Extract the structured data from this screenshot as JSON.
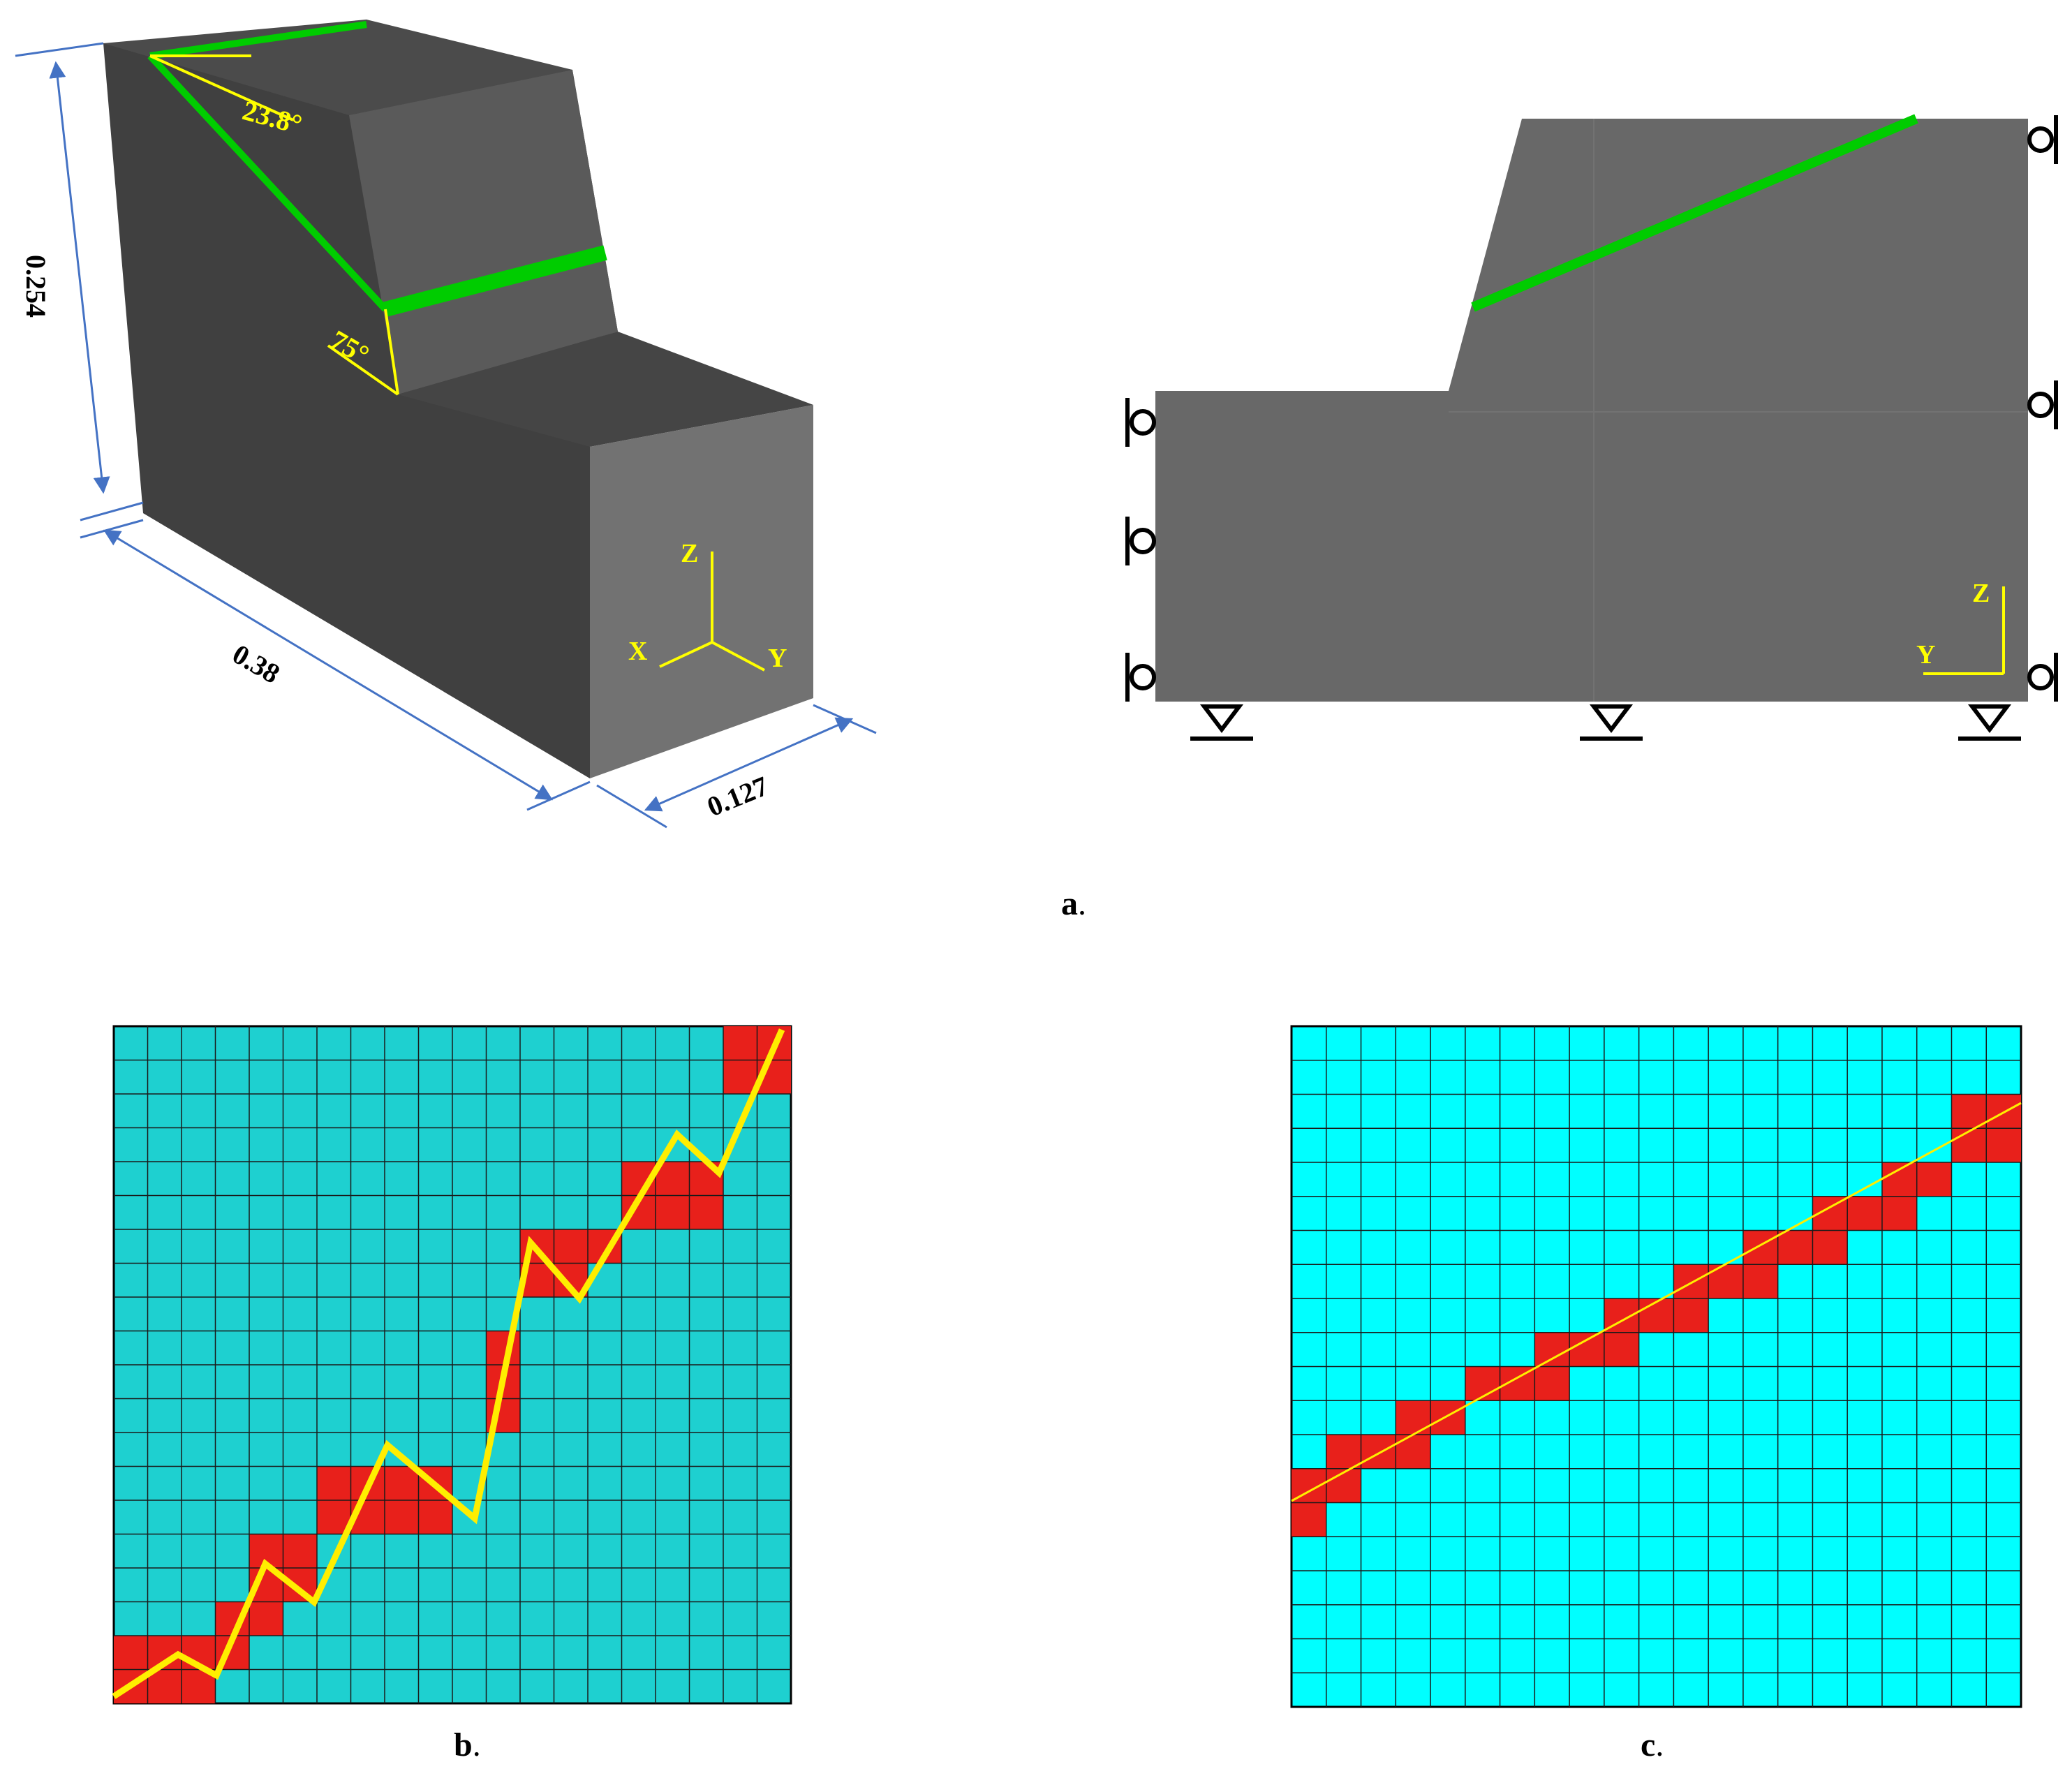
{
  "figure": {
    "panel_a": {
      "label": "a",
      "dimensions": {
        "height": "0.254",
        "length": "0.38",
        "width": "0.127"
      },
      "angles": {
        "joint_dip": "23.8°",
        "slope_face": "75°"
      },
      "axes_3d": {
        "z": "Z",
        "x": "X",
        "y": "Y"
      },
      "axes_2d": {
        "z": "Z",
        "y": "Y"
      }
    },
    "panel_b": {
      "label": "b"
    },
    "panel_c": {
      "label": "c"
    },
    "label_suffix": "."
  },
  "colors": {
    "block_dark": "#3f3f3f",
    "block_top": "#4a4a4a",
    "block_face": "#5a5a5a",
    "block_front": "#6e6e6e",
    "joint": "#00cc00",
    "annotation": "#ffff00",
    "dimension_line": "#4472c4",
    "mesh_b": "#1ed0d0",
    "mesh_c": "#00ffff",
    "cracked_cell": "#e8201b"
  }
}
